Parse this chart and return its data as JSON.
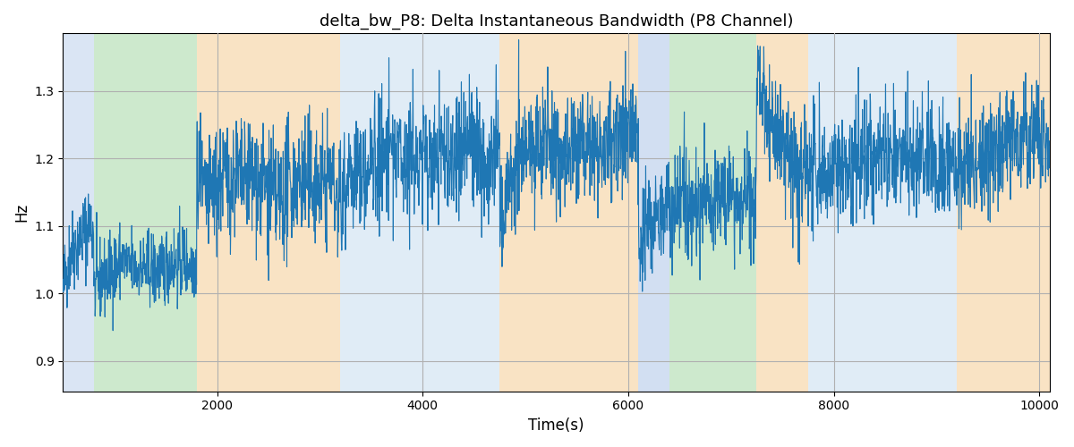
{
  "title": "delta_bw_P8: Delta Instantaneous Bandwidth (P8 Channel)",
  "xlabel": "Time(s)",
  "ylabel": "Hz",
  "xlim": [
    500,
    10100
  ],
  "ylim": [
    0.855,
    1.385
  ],
  "yticks": [
    0.9,
    1.0,
    1.1,
    1.2,
    1.3
  ],
  "xticks": [
    2000,
    4000,
    6000,
    8000,
    10000
  ],
  "line_color": "#1f77b4",
  "line_width": 0.8,
  "bg_color": "#ffffff",
  "grid_color": "#b0b0b0",
  "seed": 42,
  "bands": [
    {
      "xmin": 500,
      "xmax": 800,
      "color": "#aec6e8",
      "alpha": 0.45
    },
    {
      "xmin": 800,
      "xmax": 1800,
      "color": "#90d090",
      "alpha": 0.45
    },
    {
      "xmin": 1800,
      "xmax": 3200,
      "color": "#f5c98a",
      "alpha": 0.5
    },
    {
      "xmin": 3200,
      "xmax": 4750,
      "color": "#c8ddf0",
      "alpha": 0.55
    },
    {
      "xmin": 4750,
      "xmax": 6100,
      "color": "#f5c98a",
      "alpha": 0.5
    },
    {
      "xmin": 6100,
      "xmax": 6400,
      "color": "#aec6e8",
      "alpha": 0.55
    },
    {
      "xmin": 6400,
      "xmax": 7250,
      "color": "#90d090",
      "alpha": 0.45
    },
    {
      "xmin": 7250,
      "xmax": 7750,
      "color": "#f5c98a",
      "alpha": 0.5
    },
    {
      "xmin": 7750,
      "xmax": 9200,
      "color": "#c8ddf0",
      "alpha": 0.55
    },
    {
      "xmin": 9200,
      "xmax": 10100,
      "color": "#f5c98a",
      "alpha": 0.5
    }
  ],
  "segments": [
    {
      "xstart": 500,
      "xend": 800,
      "mean": 1.1,
      "std": 0.045
    },
    {
      "xstart": 800,
      "xend": 1800,
      "mean": 1.04,
      "std": 0.04
    },
    {
      "xstart": 1800,
      "xend": 3200,
      "mean": 1.15,
      "std": 0.065
    },
    {
      "xstart": 3200,
      "xend": 4750,
      "mean": 1.2,
      "std": 0.065
    },
    {
      "xstart": 4750,
      "xend": 6100,
      "mean": 1.22,
      "std": 0.06
    },
    {
      "xstart": 6100,
      "xend": 6400,
      "mean": 1.15,
      "std": 0.06
    },
    {
      "xstart": 6400,
      "xend": 7250,
      "mean": 1.15,
      "std": 0.055
    },
    {
      "xstart": 7250,
      "xend": 7750,
      "mean": 1.2,
      "std": 0.065
    },
    {
      "xstart": 7750,
      "xend": 9200,
      "mean": 1.2,
      "std": 0.06
    },
    {
      "xstart": 9200,
      "xend": 10100,
      "mean": 1.22,
      "std": 0.055
    }
  ]
}
